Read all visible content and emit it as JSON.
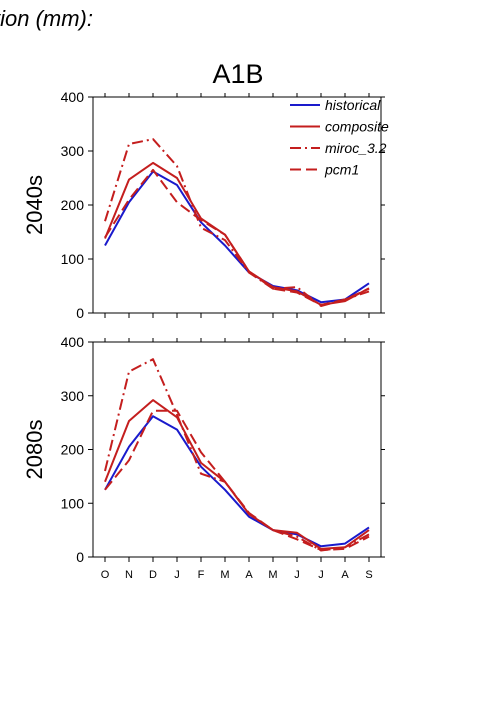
{
  "header": {
    "title": "tion (mm):"
  },
  "colors": {
    "historical": "#1a1acc",
    "composite": "#c41e1e",
    "miroc_3.2": "#c41e1e",
    "pcm1": "#c41e1e"
  },
  "chart_data": [
    {
      "type": "line",
      "title": "A1B",
      "ylabel": "2040s",
      "xlabel": "",
      "categories": [
        "O",
        "N",
        "D",
        "J",
        "F",
        "M",
        "A",
        "M",
        "J",
        "J",
        "A",
        "S"
      ],
      "ylim": [
        0,
        400
      ],
      "yticks": [
        0,
        100,
        200,
        300,
        400
      ],
      "grid": false,
      "legend": "top-right",
      "series": [
        {
          "name": "historical",
          "style": "solid",
          "values": [
            125,
            205,
            262,
            237,
            168,
            125,
            75,
            50,
            42,
            20,
            25,
            55
          ]
        },
        {
          "name": "composite",
          "style": "solid",
          "values": [
            138,
            247,
            278,
            250,
            175,
            145,
            77,
            48,
            40,
            15,
            22,
            46
          ]
        },
        {
          "name": "miroc_3.2",
          "style": "dashdot",
          "values": [
            170,
            313,
            322,
            272,
            158,
            135,
            75,
            45,
            48,
            13,
            25,
            40
          ]
        },
        {
          "name": "pcm1",
          "style": "dashed",
          "values": [
            140,
            210,
            265,
            205,
            172,
            145,
            77,
            45,
            38,
            15,
            25,
            45
          ]
        }
      ]
    },
    {
      "type": "line",
      "title": "",
      "ylabel": "2080s",
      "xlabel": "",
      "categories": [
        "O",
        "N",
        "D",
        "J",
        "F",
        "M",
        "A",
        "M",
        "J",
        "J",
        "A",
        "S"
      ],
      "ylim": [
        0,
        400
      ],
      "yticks": [
        0,
        100,
        200,
        300,
        400
      ],
      "grid": false,
      "series": [
        {
          "name": "historical",
          "style": "solid",
          "values": [
            125,
            205,
            262,
            237,
            168,
            125,
            75,
            50,
            42,
            20,
            25,
            55
          ]
        },
        {
          "name": "composite",
          "style": "solid",
          "values": [
            140,
            253,
            292,
            260,
            175,
            140,
            80,
            50,
            45,
            15,
            18,
            50
          ]
        },
        {
          "name": "miroc_3.2",
          "style": "dashdot",
          "values": [
            160,
            345,
            368,
            265,
            155,
            140,
            80,
            50,
            38,
            12,
            18,
            42
          ]
        },
        {
          "name": "pcm1",
          "style": "dashed",
          "values": [
            125,
            180,
            272,
            272,
            195,
            140,
            82,
            50,
            33,
            13,
            15,
            38
          ]
        }
      ]
    }
  ]
}
